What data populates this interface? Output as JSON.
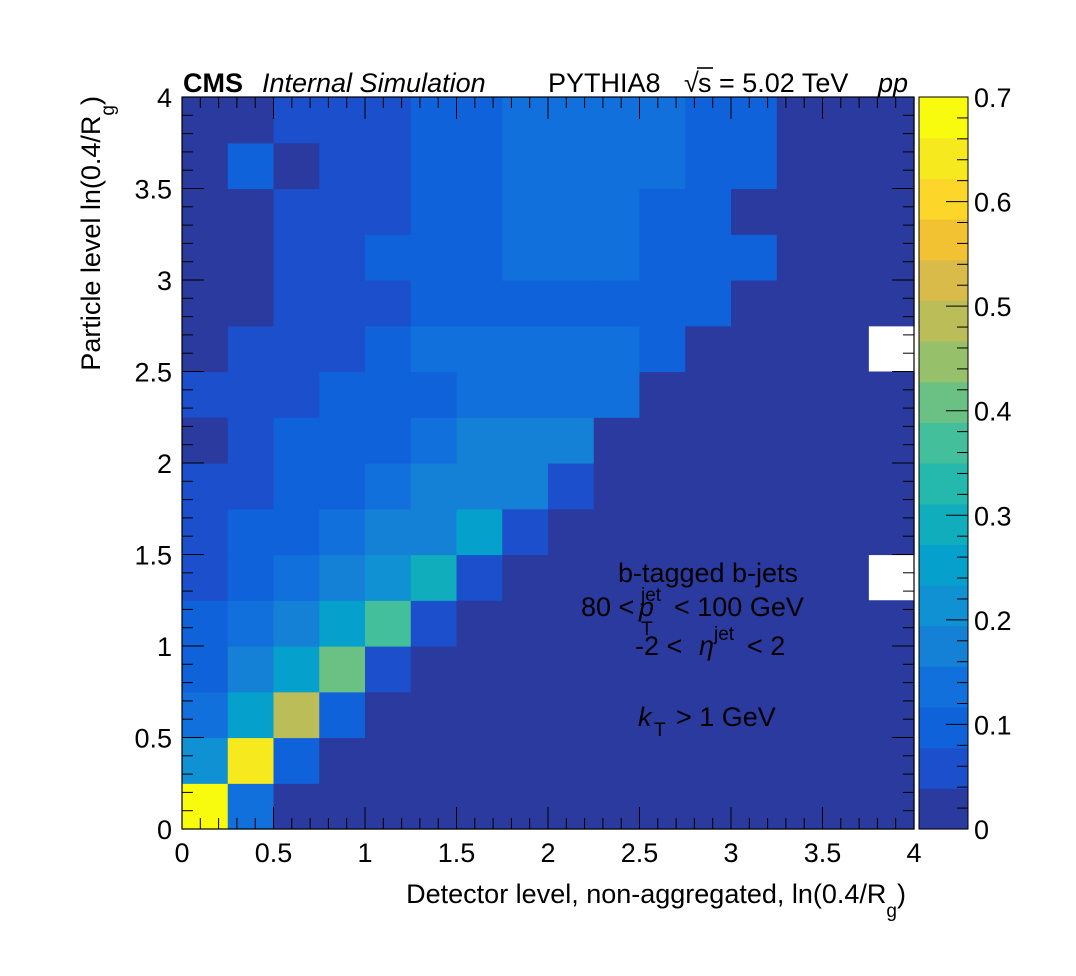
{
  "header": {
    "experiment": "CMS",
    "status": "Internal Simulation",
    "generator": "PYTHIA8",
    "sqrt_s_symbol": "√",
    "sqrt_s_var": "s",
    "energy": "= 5.02 TeV",
    "system": "pp"
  },
  "annotation": {
    "sample": "b-tagged b-jets",
    "pt_left": "80 <",
    "pt_symbol": "p",
    "pt_sub": "T",
    "pt_sup": "jet",
    "pt_right": "< 100 GeV",
    "eta_left": "-2 <",
    "eta_symbol": "η",
    "eta_sup": "jet",
    "eta_right": "< 2",
    "kt_symbol": "k",
    "kt_sub": "T",
    "kt_right": "> 1 GeV"
  },
  "axes": {
    "xlabel_main": "Detector level, non-aggregated, ln(0.4/R",
    "xlabel_sub": "g",
    "xlabel_close": ")",
    "ylabel_main": "Particle level ln(0.4/R",
    "ylabel_sub": "g",
    "ylabel_close": ")"
  },
  "chart_data": {
    "type": "heatmap",
    "x_edges": [
      0,
      0.25,
      0.5,
      0.75,
      1,
      1.25,
      1.5,
      1.75,
      2,
      2.25,
      2.5,
      2.75,
      3,
      3.25,
      3.5,
      3.75,
      4
    ],
    "y_edges": [
      0,
      0.25,
      0.5,
      0.75,
      1,
      1.25,
      1.5,
      1.75,
      2,
      2.25,
      2.5,
      2.75,
      3,
      3.25,
      3.5,
      3.75,
      4
    ],
    "xlim": [
      0,
      4
    ],
    "ylim": [
      0,
      4
    ],
    "zlim": [
      0,
      0.7
    ],
    "x_ticks": [
      "0",
      "0.5",
      "1",
      "1.5",
      "2",
      "2.5",
      "3",
      "3.5",
      "4"
    ],
    "y_ticks": [
      "0",
      "0.5",
      "1",
      "1.5",
      "2",
      "2.5",
      "3",
      "3.5",
      "4"
    ],
    "z_ticks": [
      "0",
      "0.1",
      "0.2",
      "0.3",
      "0.4",
      "0.5",
      "0.6",
      "0.7"
    ],
    "colorbar_palette": [
      "#2a3a9e",
      "#1b4fcb",
      "#0f62d9",
      "#1170db",
      "#1480d6",
      "#0f91d3",
      "#05a0cb",
      "#10aebd",
      "#25b9ad",
      "#44bf9c",
      "#6bc083",
      "#97c06a",
      "#bbbd59",
      "#d9bb4a",
      "#f3c233",
      "#fcd72a",
      "#f6e91e",
      "#f9fb0e"
    ],
    "z_rows_from_bottom": [
      [
        0.7,
        0.15,
        0.01,
        0.01,
        0.01,
        0.01,
        0.01,
        0.01,
        0.01,
        0.01,
        0.01,
        0.01,
        0.01,
        0.01,
        0.01,
        0.01
      ],
      [
        0.22,
        0.63,
        0.1,
        0.01,
        0.01,
        0.01,
        0.01,
        0.01,
        0.01,
        0.01,
        0.01,
        0.01,
        0.01,
        0.01,
        0.01,
        0.01
      ],
      [
        0.14,
        0.25,
        0.5,
        0.1,
        0.01,
        0.01,
        0.01,
        0.01,
        0.01,
        0.01,
        0.01,
        0.01,
        0.01,
        0.01,
        0.01,
        0.01
      ],
      [
        0.1,
        0.17,
        0.24,
        0.42,
        0.06,
        0.01,
        0.01,
        0.01,
        0.01,
        0.01,
        0.01,
        0.01,
        0.01,
        0.01,
        0.01,
        0.01
      ],
      [
        0.09,
        0.13,
        0.17,
        0.24,
        0.35,
        0.06,
        0.01,
        0.01,
        0.01,
        0.01,
        0.01,
        0.01,
        0.01,
        0.01,
        0.01,
        0.01
      ],
      [
        0.06,
        0.1,
        0.14,
        0.17,
        0.23,
        0.31,
        0.06,
        0.01,
        0.01,
        0.01,
        0.01,
        0.01,
        0.01,
        0.01,
        0.01,
        null
      ],
      [
        0.06,
        0.09,
        0.1,
        0.13,
        0.16,
        0.19,
        0.24,
        0.05,
        0.01,
        0.01,
        0.01,
        0.01,
        0.01,
        0.01,
        0.01,
        0.01
      ],
      [
        0.05,
        0.06,
        0.09,
        0.11,
        0.13,
        0.16,
        0.19,
        0.19,
        0.06,
        0.01,
        0.01,
        0.01,
        0.01,
        0.01,
        0.01,
        0.01
      ],
      [
        0.03,
        0.06,
        0.09,
        0.1,
        0.11,
        0.14,
        0.17,
        0.17,
        0.17,
        0.01,
        0.01,
        0.01,
        0.01,
        0.01,
        0.01,
        0.01
      ],
      [
        0.05,
        0.05,
        0.06,
        0.08,
        0.09,
        0.11,
        0.15,
        0.15,
        0.13,
        0.13,
        0.01,
        0.01,
        0.01,
        0.01,
        0.01,
        0.01
      ],
      [
        0.03,
        0.06,
        0.06,
        0.06,
        0.1,
        0.12,
        0.13,
        0.13,
        0.13,
        0.13,
        0.11,
        0.01,
        0.01,
        0.01,
        0.01,
        null
      ],
      [
        0.02,
        0.02,
        0.06,
        0.06,
        0.06,
        0.09,
        0.11,
        0.11,
        0.11,
        0.11,
        0.11,
        0.08,
        0.01,
        0.01,
        0.01,
        0.01
      ],
      [
        0.02,
        0.02,
        0.06,
        0.06,
        0.09,
        0.09,
        0.09,
        0.12,
        0.12,
        0.12,
        0.09,
        0.09,
        0.08,
        0.01,
        0.01,
        0.01
      ],
      [
        0.02,
        0.02,
        0.06,
        0.06,
        0.06,
        0.09,
        0.09,
        0.12,
        0.12,
        0.12,
        0.11,
        0.11,
        0.01,
        0.01,
        0.01,
        0.01
      ],
      [
        0.02,
        0.08,
        0.02,
        0.06,
        0.06,
        0.09,
        0.09,
        0.12,
        0.12,
        0.12,
        0.12,
        0.09,
        0.09,
        0.01,
        0.01,
        0.01
      ],
      [
        0.02,
        0.02,
        0.06,
        0.06,
        0.06,
        0.09,
        0.09,
        0.12,
        0.12,
        0.12,
        0.12,
        0.09,
        0.09,
        0.01,
        0.01,
        0.01
      ]
    ]
  }
}
